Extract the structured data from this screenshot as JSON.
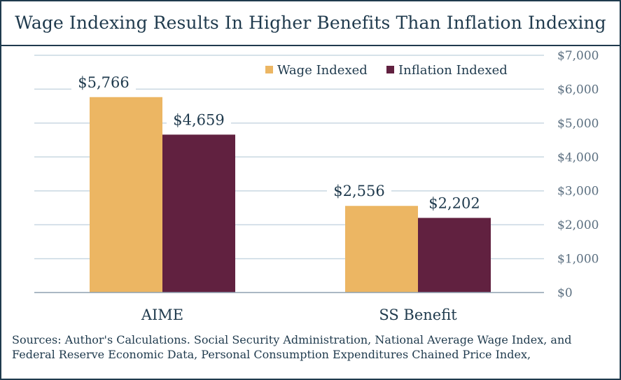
{
  "title": "Wage Indexing Results In Higher Benefits Than Inflation Indexing",
  "sources": "Sources: Author's Calculations. Social Security Administration, National Average Wage Index, and Federal Reserve Economic Data, Personal Consumption Expenditures Chained Price Index,",
  "colors": {
    "wage": "#ecb663",
    "inflation": "#612140",
    "text": "#1f3a4d",
    "grid": "#c9d8e2"
  },
  "chart_data": {
    "type": "bar",
    "categories": [
      "AIME",
      "SS Benefit"
    ],
    "series": [
      {
        "name": "Wage Indexed",
        "values": [
          5766,
          2556
        ],
        "labels": [
          "$5,766",
          "$2,556"
        ]
      },
      {
        "name": "Inflation Indexed",
        "values": [
          4659,
          2202
        ],
        "labels": [
          "$4,659",
          "$2,202"
        ]
      }
    ],
    "ylim": [
      0,
      7000
    ],
    "y_ticks": [
      0,
      1000,
      2000,
      3000,
      4000,
      5000,
      6000,
      7000
    ],
    "y_tick_labels": [
      "$0",
      "$1,000",
      "$2,000",
      "$3,000",
      "$4,000",
      "$5,000",
      "$6,000",
      "$7,000"
    ],
    "y_axis_side": "right",
    "grid": true,
    "legend_position": "top-right"
  }
}
